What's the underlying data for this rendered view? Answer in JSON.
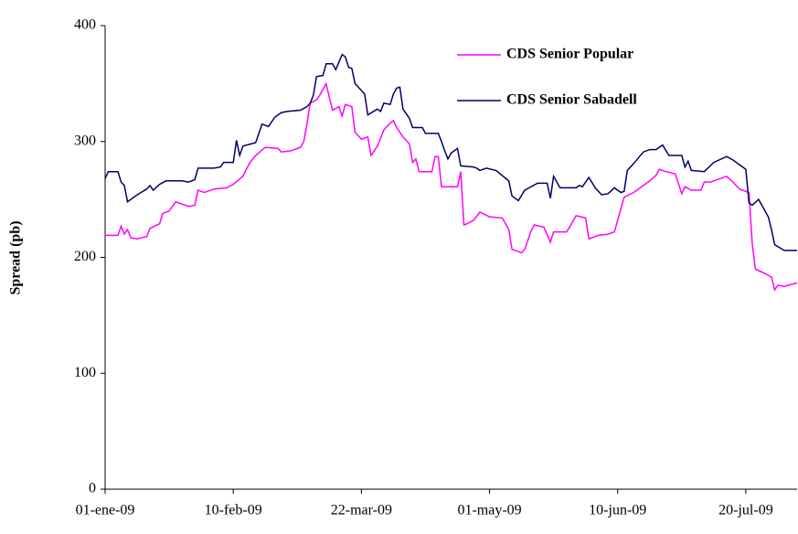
{
  "chart_data": {
    "type": "line",
    "y_label": "Spread (pb)",
    "xlim": [
      0,
      216
    ],
    "xticks": [
      {
        "value": 0,
        "label": "01-ene-09"
      },
      {
        "value": 40,
        "label": "10-feb-09"
      },
      {
        "value": 80,
        "label": "22-mar-09"
      },
      {
        "value": 120,
        "label": "01-may-09"
      },
      {
        "value": 160,
        "label": "10-jun-09"
      },
      {
        "value": 200,
        "label": "20-jul-09"
      }
    ],
    "ylim": [
      0,
      400
    ],
    "yticks": [
      0,
      100,
      200,
      300,
      400
    ],
    "grid": false,
    "legend": "upper right",
    "series": [
      {
        "name": "CDS Senior Popular",
        "color": "#ff00ff",
        "x": [
          0,
          4,
          5,
          6,
          7,
          8,
          10,
          13,
          14,
          17,
          18,
          20,
          22,
          26,
          28,
          29,
          31,
          34,
          38,
          40,
          43,
          45,
          47,
          50,
          54,
          55,
          58,
          61,
          62,
          63,
          64,
          66,
          67,
          69,
          70,
          71,
          73,
          74,
          75,
          77,
          78,
          80,
          82,
          83,
          85,
          87,
          89,
          90,
          91,
          93,
          95,
          96,
          97,
          98,
          102,
          103,
          104,
          105,
          110,
          111,
          112,
          113,
          115,
          117,
          120,
          124,
          126,
          127,
          130,
          131,
          133,
          134,
          137,
          139,
          140,
          144,
          145,
          147,
          150,
          151,
          154,
          157,
          159,
          160,
          162,
          165,
          168,
          170,
          172,
          173,
          175,
          178,
          180,
          181,
          183,
          186,
          187,
          189,
          191,
          194,
          196,
          198,
          201,
          202,
          203,
          206,
          208,
          209,
          210,
          212,
          216
        ],
        "values": [
          219,
          219,
          227,
          220,
          224,
          217,
          216,
          218,
          225,
          229,
          238,
          240,
          248,
          244,
          245,
          258,
          256,
          259,
          260,
          263,
          270,
          281,
          288,
          295,
          294,
          291,
          292,
          295,
          300,
          315,
          333,
          336,
          340,
          350,
          338,
          327,
          330,
          322,
          332,
          330,
          308,
          302,
          304,
          288,
          296,
          310,
          316,
          318,
          312,
          304,
          298,
          282,
          285,
          274,
          274,
          287,
          287,
          261,
          261,
          274,
          228,
          229,
          232,
          239,
          235,
          234,
          224,
          207,
          204,
          207,
          223,
          228,
          226,
          213,
          222,
          222,
          226,
          236,
          234,
          216,
          219,
          220,
          222,
          232,
          252,
          256,
          262,
          266,
          271,
          276,
          274,
          272,
          255,
          261,
          258,
          258,
          265,
          265,
          267,
          270,
          265,
          259,
          256,
          212,
          190,
          186,
          183,
          172,
          176,
          175,
          178
        ]
      },
      {
        "name": "CDS Senior Sabadell",
        "color": "#000066",
        "x": [
          0,
          1,
          4,
          5,
          6,
          7,
          10,
          13,
          14,
          15,
          17,
          19,
          24,
          26,
          28,
          29,
          34,
          36,
          37,
          40,
          41,
          42,
          43,
          47,
          49,
          51,
          53,
          55,
          57,
          61,
          63,
          64,
          65,
          66,
          68,
          69,
          71,
          72,
          74,
          75,
          76,
          77,
          78,
          81,
          82,
          85,
          86,
          87,
          89,
          90,
          91,
          92,
          93,
          95,
          96,
          99,
          100,
          104,
          105,
          106,
          107,
          108,
          110,
          111,
          115,
          116,
          117,
          119,
          122,
          126,
          127,
          129,
          131,
          135,
          138,
          139,
          140,
          142,
          147,
          148,
          149,
          151,
          153,
          155,
          157,
          159,
          160,
          161,
          162,
          163,
          165,
          168,
          170,
          172,
          174,
          176,
          180,
          181,
          182,
          183,
          187,
          190,
          194,
          196,
          198,
          200,
          201,
          202,
          204,
          207,
          208,
          209,
          212,
          216
        ],
        "values": [
          268,
          274,
          274,
          265,
          262,
          248,
          254,
          259,
          262,
          258,
          263,
          266,
          266,
          265,
          267,
          277,
          277,
          278,
          282,
          282,
          301,
          288,
          296,
          299,
          315,
          313,
          321,
          325,
          326,
          327,
          330,
          333,
          340,
          356,
          357,
          367,
          367,
          362,
          375,
          373,
          364,
          363,
          350,
          341,
          323,
          328,
          326,
          333,
          332,
          341,
          346,
          347,
          328,
          320,
          312,
          312,
          307,
          307,
          300,
          292,
          285,
          290,
          294,
          279,
          278,
          277,
          275,
          277,
          275,
          266,
          253,
          249,
          258,
          264,
          264,
          251,
          270,
          260,
          260,
          262,
          261,
          269,
          260,
          254,
          255,
          260,
          258,
          256,
          257,
          275,
          281,
          291,
          293,
          293,
          297,
          288,
          288,
          278,
          283,
          275,
          274,
          282,
          287,
          284,
          280,
          276,
          247,
          245,
          250,
          235,
          224,
          211,
          206,
          206
        ]
      }
    ]
  }
}
